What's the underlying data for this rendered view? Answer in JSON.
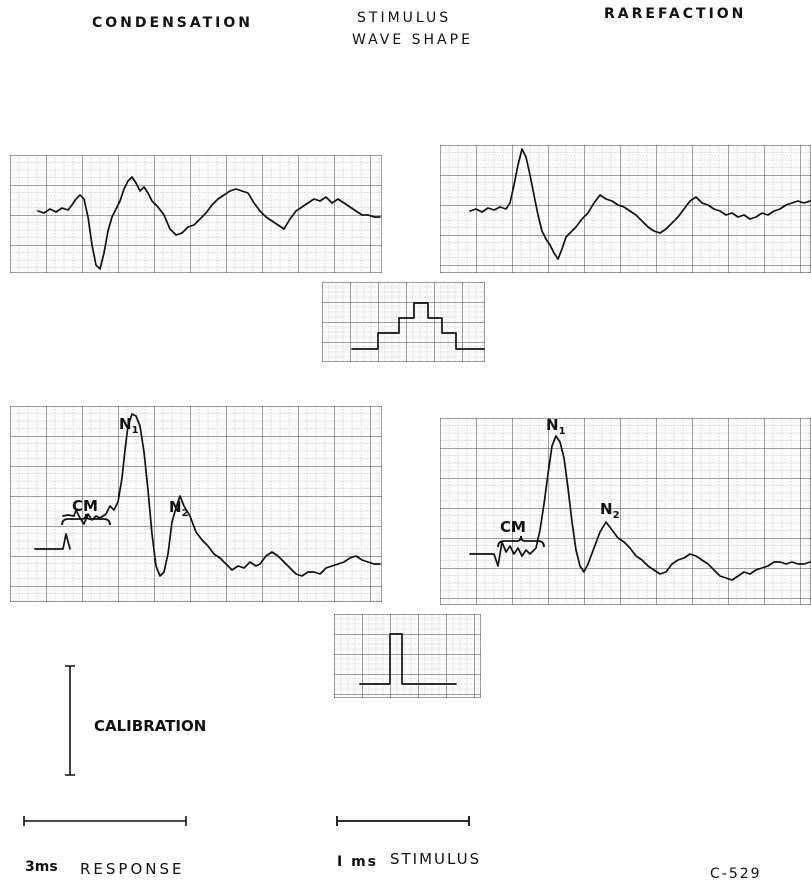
{
  "header": {
    "condensation": "CONDENSATION",
    "stimulus_line1": "STIMULUS",
    "stimulus_line2": "WAVE SHAPE",
    "rarefaction": "RAREFACTION"
  },
  "annotations": {
    "cm": "CM",
    "n1_letter": "N",
    "n1_sub": "1",
    "n2_letter": "N",
    "n2_sub": "2"
  },
  "calibration_label": "CALIBRATION",
  "scale_bars": {
    "response_value": "3ms",
    "response_label": "RESPONSE",
    "stimulus_value": "I ms",
    "stimulus_label": "STIMULUS"
  },
  "figure_id": "C-529"
}
